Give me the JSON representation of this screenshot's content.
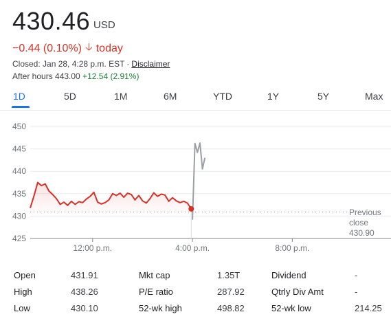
{
  "quote": {
    "price": "430.46",
    "currency": "USD",
    "change": "−0.44 (0.10%)",
    "change_period": "today",
    "closed_prefix": "Closed: Jan 28, 4:28 p.m. EST",
    "separator": "·",
    "disclaimer": "Disclaimer",
    "after_hours_label": "After hours 443.00",
    "after_hours_change": "+12.54 (2.91%)"
  },
  "range_tabs": [
    "1D",
    "5D",
    "1M",
    "6M",
    "YTD",
    "1Y",
    "5Y",
    "Max"
  ],
  "active_tab": "1D",
  "colors": {
    "down": "#d93025",
    "up": "#188038",
    "accent": "#1a73e8",
    "afterhours_line": "#9aa0a6"
  },
  "chart_data": {
    "type": "line",
    "y_ticks": [
      "450",
      "445",
      "440",
      "435",
      "430",
      "425"
    ],
    "ylim": [
      425,
      450
    ],
    "x_ticks": [
      "12:00 p.m.",
      "4:00 p.m.",
      "8:00 p.m."
    ],
    "x_tick_hours": [
      12,
      16,
      20
    ],
    "xlim_hours": [
      9.5,
      22
    ],
    "previous_close_label": [
      "Previous",
      "close",
      "430.90"
    ],
    "previous_close": 430.9,
    "grid": true,
    "series": [
      {
        "values_hours": [
          9.5,
          9.65,
          9.8,
          9.95,
          10.1,
          10.25,
          10.4,
          10.55,
          10.7,
          10.85,
          11.0,
          11.15,
          11.3,
          11.45,
          11.6,
          11.75,
          11.9,
          12.05,
          12.2,
          12.35,
          12.5,
          12.65,
          12.8,
          12.95,
          13.1,
          13.25,
          13.4,
          13.55,
          13.7,
          13.85,
          14.0,
          14.15,
          14.3,
          14.45,
          14.6,
          14.75,
          14.9,
          15.05,
          15.2,
          15.35,
          15.5,
          15.65,
          15.8,
          15.95
        ],
        "values": [
          431.8,
          434.5,
          437.5,
          436.8,
          437.2,
          435.6,
          434.8,
          433.9,
          432.6,
          433.1,
          432.4,
          433.3,
          432.6,
          433.2,
          433.0,
          433.8,
          434.4,
          435.3,
          433.1,
          432.7,
          433.0,
          433.6,
          435.0,
          434.6,
          435.1,
          434.2,
          435.1,
          434.8,
          433.6,
          434.6,
          433.4,
          432.9,
          433.9,
          435.2,
          434.4,
          434.9,
          434.7,
          433.3,
          434.1,
          433.4,
          433.0,
          433.3,
          432.9,
          431.6
        ]
      },
      {
        "values_hours": [
          16.0,
          16.1,
          16.2,
          16.3,
          16.4,
          16.5
        ],
        "values": [
          429.2,
          446.2,
          444.2,
          446.3,
          440.5,
          443.0
        ]
      }
    ]
  },
  "stats": {
    "rows": [
      [
        {
          "label": "Open",
          "value": "431.91"
        },
        {
          "label": "Mkt cap",
          "value": "1.35T"
        },
        {
          "label": "Dividend",
          "value": "-"
        }
      ],
      [
        {
          "label": "High",
          "value": "438.26"
        },
        {
          "label": "P/E ratio",
          "value": "287.92"
        },
        {
          "label": "Qtrly Div Amt",
          "value": "-"
        }
      ],
      [
        {
          "label": "Low",
          "value": "430.10"
        },
        {
          "label": "52-wk high",
          "value": "498.82"
        },
        {
          "label": "52-wk low",
          "value": "214.25"
        }
      ]
    ]
  }
}
